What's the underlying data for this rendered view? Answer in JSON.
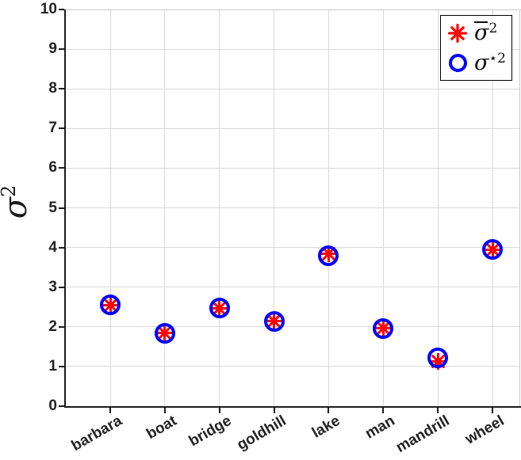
{
  "chart_data": {
    "type": "scatter",
    "title": "",
    "xlabel": "",
    "ylabel": {
      "base": "σ",
      "sup": "2"
    },
    "ylim": [
      0,
      10
    ],
    "yticks": [
      "0",
      "1",
      "2",
      "3",
      "4",
      "5",
      "6",
      "7",
      "8",
      "9",
      "10"
    ],
    "grid": true,
    "categories": [
      "barbara",
      "boat",
      "bridge",
      "goldhill",
      "lake",
      "man",
      "mandrill",
      "wheel"
    ],
    "series": [
      {
        "name": "sigma-bar-squared",
        "marker": "red-asterisk",
        "color": "#ff0000",
        "values": [
          2.55,
          1.84,
          2.47,
          2.14,
          3.85,
          1.96,
          1.12,
          3.95
        ]
      },
      {
        "name": "sigma-star-squared",
        "marker": "blue-circle",
        "color": "#0000ff",
        "values": [
          2.55,
          1.84,
          2.47,
          2.14,
          3.79,
          1.96,
          1.21,
          3.95
        ]
      }
    ],
    "legend_position": "top-right"
  },
  "legend": {
    "entries": [
      {
        "symbol": "asterisk",
        "color": "#ff0000",
        "base": "σ",
        "overbar": true,
        "sup": "2"
      },
      {
        "symbol": "circle",
        "color": "#0000ff",
        "base": "σ",
        "overbar": false,
        "sup": "⋆2"
      }
    ]
  },
  "colors": {
    "axis": "#1c1c1c",
    "grid": "#dadada",
    "tick_text": "#232323",
    "background": "#ffffff"
  }
}
